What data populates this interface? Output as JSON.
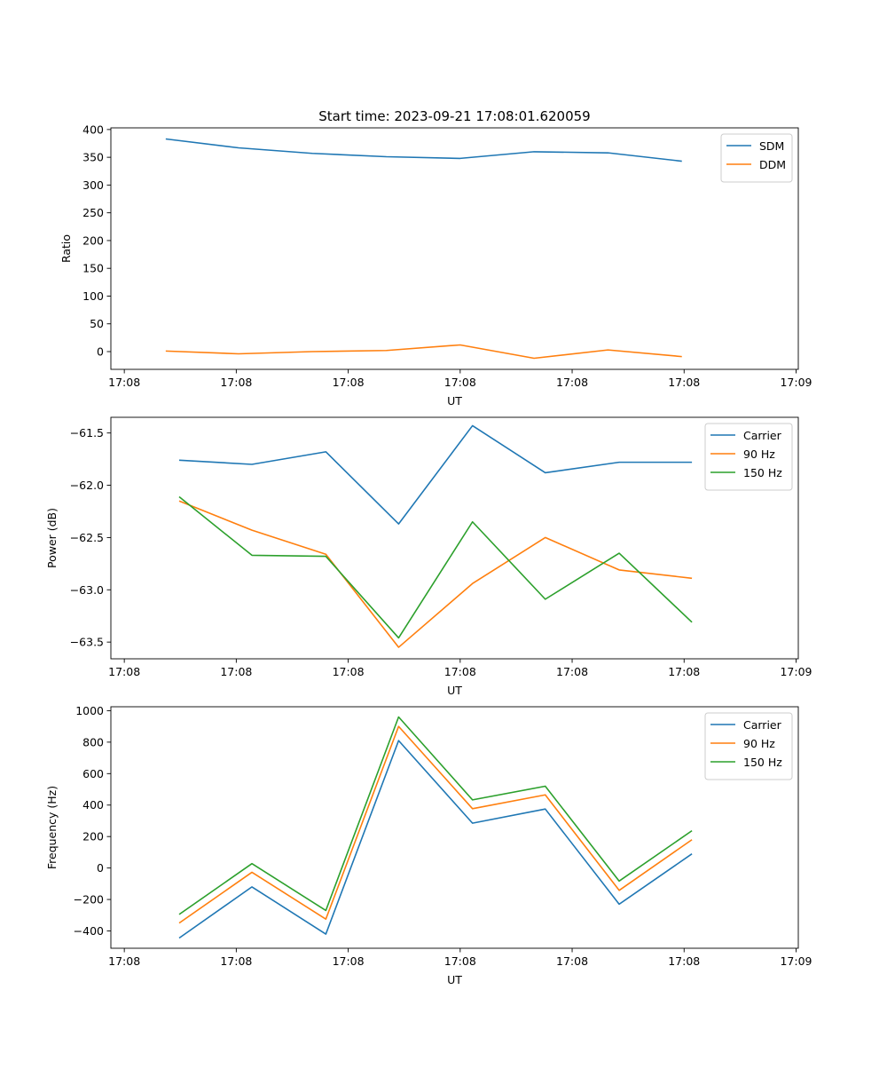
{
  "figure_title": "Start time: 2023-09-21 17:08:01.620059",
  "colors": {
    "blue": "#1f77b4",
    "orange": "#ff7f0e",
    "green": "#2ca02c"
  },
  "chart_data": [
    {
      "type": "line",
      "title": "Start time: 2023-09-21 17:08:01.620059",
      "xlabel": "UT",
      "ylabel": "Ratio",
      "x_tick_labels": [
        "17:08",
        "17:08",
        "17:08",
        "17:08",
        "17:08",
        "17:08",
        "17:09"
      ],
      "xlim": [
        -0.12,
        6.02
      ],
      "x": [
        0.37,
        1.02,
        1.68,
        2.34,
        3.0,
        3.66,
        4.32,
        4.98
      ],
      "y_ticks": [
        0,
        50,
        100,
        150,
        200,
        250,
        300,
        350,
        400
      ],
      "ylim": [
        -32,
        403
      ],
      "legend_loc": "upper right",
      "series": [
        {
          "name": "SDM",
          "color": "#1f77b4",
          "values": [
            383,
            367,
            357,
            351,
            348,
            360,
            358,
            343
          ]
        },
        {
          "name": "DDM",
          "color": "#ff7f0e",
          "values": [
            1,
            -4,
            0,
            2,
            12,
            -12,
            3,
            -9
          ]
        }
      ]
    },
    {
      "type": "line",
      "title": "",
      "xlabel": "UT",
      "ylabel": "Power (dB)",
      "x_tick_labels": [
        "17:08",
        "17:08",
        "17:08",
        "17:08",
        "17:08",
        "17:08",
        "17:09"
      ],
      "xlim": [
        -0.12,
        6.02
      ],
      "x": [
        0.49,
        1.14,
        1.8,
        2.45,
        3.11,
        3.76,
        4.42,
        5.07
      ],
      "y_ticks": [
        -63.5,
        -63.0,
        -62.5,
        -62.0,
        -61.5
      ],
      "y_tick_labels": [
        "−63.5",
        "−63.0",
        "−62.5",
        "−62.0",
        "−61.5"
      ],
      "ylim": [
        -63.66,
        -61.35
      ],
      "legend_loc": "upper right",
      "series": [
        {
          "name": "Carrier",
          "color": "#1f77b4",
          "values": [
            -61.76,
            -61.8,
            -61.68,
            -62.37,
            -61.43,
            -61.88,
            -61.78,
            -61.78
          ]
        },
        {
          "name": "90 Hz",
          "color": "#ff7f0e",
          "values": [
            -62.15,
            -62.43,
            -62.66,
            -63.55,
            -62.94,
            -62.5,
            -62.81,
            -62.89
          ]
        },
        {
          "name": "150 Hz",
          "color": "#2ca02c",
          "values": [
            -62.11,
            -62.67,
            -62.68,
            -63.46,
            -62.35,
            -63.09,
            -62.65,
            -63.31
          ]
        }
      ]
    },
    {
      "type": "line",
      "title": "",
      "xlabel": "UT",
      "ylabel": "Frequency (Hz)",
      "x_tick_labels": [
        "17:08",
        "17:08",
        "17:08",
        "17:08",
        "17:08",
        "17:08",
        "17:09"
      ],
      "xlim": [
        -0.12,
        6.02
      ],
      "x": [
        0.49,
        1.14,
        1.8,
        2.45,
        3.11,
        3.76,
        4.42,
        5.07
      ],
      "y_ticks": [
        -400,
        -200,
        0,
        200,
        400,
        600,
        800,
        1000
      ],
      "y_tick_labels": [
        "−400",
        "−200",
        "0",
        "200",
        "400",
        "600",
        "800",
        "1000"
      ],
      "ylim": [
        -510,
        1025
      ],
      "legend_loc": "upper right",
      "series": [
        {
          "name": "Carrier",
          "color": "#1f77b4",
          "values": [
            -445,
            -120,
            -420,
            810,
            285,
            375,
            -230,
            90
          ]
        },
        {
          "name": "90 Hz",
          "color": "#ff7f0e",
          "values": [
            -350,
            -27,
            -325,
            900,
            377,
            465,
            -142,
            180
          ]
        },
        {
          "name": "150 Hz",
          "color": "#2ca02c",
          "values": [
            -295,
            28,
            -270,
            960,
            433,
            520,
            -83,
            237
          ]
        }
      ]
    }
  ]
}
